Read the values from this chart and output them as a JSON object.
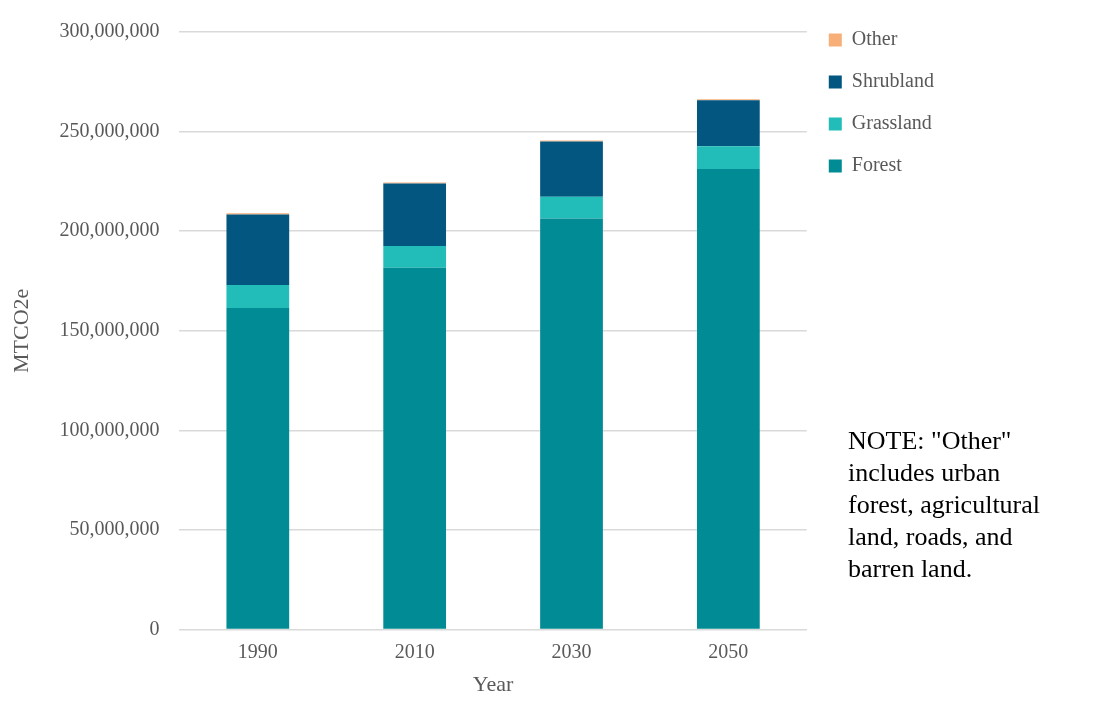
{
  "chart_data": {
    "type": "bar",
    "stacked": true,
    "xlabel": "Year",
    "ylabel": "MTCO2e",
    "categories": [
      "1990",
      "2010",
      "2030",
      "2050"
    ],
    "series": [
      {
        "name": "Forest",
        "color": "#008b95",
        "values": [
          161400000,
          181700000,
          206400000,
          231200000
        ]
      },
      {
        "name": "Grassland",
        "color": "#22bdb8",
        "values": [
          11600000,
          10900000,
          10900000,
          11400000
        ]
      },
      {
        "name": "Shrubland",
        "color": "#02567f",
        "values": [
          35400000,
          31400000,
          27700000,
          23200000
        ]
      },
      {
        "name": "Other",
        "color": "#f7ae77",
        "values": [
          600000,
          500000,
          500000,
          500000
        ]
      }
    ],
    "ylim": [
      0,
      300000000
    ],
    "yticks": [
      0,
      {
        "value": 50000000,
        "label": "50,000,000"
      },
      {
        "value": 100000000,
        "label": "100,000,000"
      },
      {
        "value": 150000000,
        "label": "150,000,000"
      },
      {
        "value": 200000000,
        "label": "200,000,000"
      },
      {
        "value": 250000000,
        "label": "250,000,000"
      },
      {
        "value": 300000000,
        "label": "300,000,000"
      }
    ],
    "grid": "y",
    "legend": "right",
    "annotations": [
      "NOTE:  \"Other\" includes urban forest, agricultural land, roads, and barren land."
    ]
  }
}
